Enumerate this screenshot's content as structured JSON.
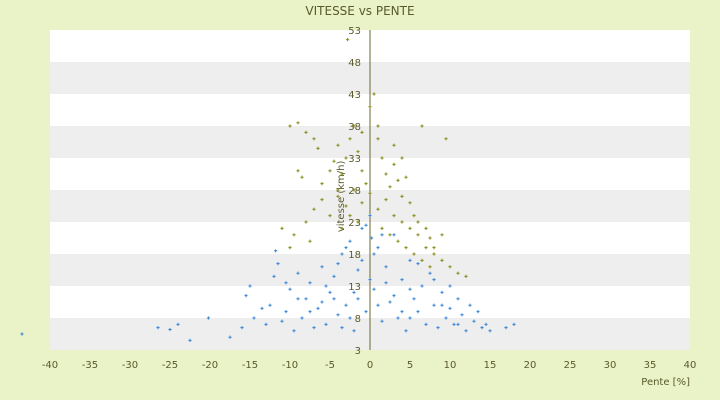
{
  "chart_data": {
    "type": "scatter",
    "title": "VITESSE vs PENTE",
    "xlabel": "Pente [%]",
    "ylabel": "vitesse (km/h)",
    "xlim": [
      -40,
      40
    ],
    "ylim": [
      3,
      53
    ],
    "x_ticks": [
      "-40",
      "-35",
      "-30",
      "-25",
      "-20",
      "-15",
      "-10",
      "-5",
      "0",
      "5",
      "10",
      "15",
      "20",
      "25",
      "30",
      "35",
      "40"
    ],
    "y_ticks": [
      "53",
      "48",
      "43",
      "38",
      "33",
      "28",
      "23",
      "18",
      "13",
      "8",
      "3"
    ],
    "grid": "horizontal bands",
    "legend": "none",
    "colors": {
      "background": "#eaf2c8",
      "plot_band_light": "#ffffff",
      "plot_band_dark": "#eeeeee",
      "series_blue": "#3a86d6",
      "series_olive": "#8a8a1a",
      "axis_line": "#6a6a2a",
      "text": "#5a5a2a"
    },
    "series": [
      {
        "color": "#3a86d6",
        "marker": "+",
        "points": [
          [
            -43.5,
            5.5
          ],
          [
            -26.5,
            6.5
          ],
          [
            -25,
            6.2
          ],
          [
            -24,
            7
          ],
          [
            -22.5,
            4.5
          ],
          [
            -20.2,
            8
          ],
          [
            -17.5,
            5
          ],
          [
            -16,
            6.5
          ],
          [
            -15.5,
            11.5
          ],
          [
            -15,
            13
          ],
          [
            -14.5,
            8
          ],
          [
            -13,
            7
          ],
          [
            -12.5,
            10
          ],
          [
            -12,
            14.5
          ],
          [
            -11.5,
            16.5
          ],
          [
            -11.8,
            18.5
          ],
          [
            -10.5,
            9
          ],
          [
            -10,
            12.5
          ],
          [
            -9.5,
            6
          ],
          [
            -9,
            15
          ],
          [
            -8.5,
            8
          ],
          [
            -8,
            11
          ],
          [
            -7.5,
            13.5
          ],
          [
            -7,
            6.5
          ],
          [
            -6.5,
            9.5
          ],
          [
            -6,
            16
          ],
          [
            -5.5,
            7
          ],
          [
            -5,
            12
          ],
          [
            -4.5,
            14.5
          ],
          [
            -4,
            8.5
          ],
          [
            -3.5,
            18
          ],
          [
            -3,
            10
          ],
          [
            -2.5,
            20
          ],
          [
            -2,
            6
          ],
          [
            -1.5,
            15.5
          ],
          [
            -1,
            22
          ],
          [
            -0.5,
            9
          ],
          [
            0,
            24
          ],
          [
            0.5,
            12.5
          ],
          [
            1,
            19
          ],
          [
            1.5,
            7.5
          ],
          [
            2,
            16
          ],
          [
            2.5,
            10.5
          ],
          [
            3,
            21
          ],
          [
            3.5,
            8
          ],
          [
            4,
            14
          ],
          [
            4.5,
            6
          ],
          [
            5,
            17
          ],
          [
            5.5,
            11
          ],
          [
            6,
            9
          ],
          [
            6.5,
            13
          ],
          [
            7,
            7
          ],
          [
            7.5,
            15
          ],
          [
            8,
            10
          ],
          [
            8.5,
            6.5
          ],
          [
            9,
            12
          ],
          [
            9.5,
            8
          ],
          [
            10,
            9.5
          ],
          [
            10.5,
            7
          ],
          [
            11,
            11
          ],
          [
            11.5,
            8.5
          ],
          [
            12,
            6
          ],
          [
            12.5,
            10
          ],
          [
            13,
            7.5
          ],
          [
            13.5,
            9
          ],
          [
            14,
            6.5
          ],
          [
            14.5,
            7
          ],
          [
            15,
            6
          ],
          [
            17,
            6.5
          ],
          [
            18,
            7
          ],
          [
            -6,
            10.5
          ],
          [
            -5.5,
            13
          ],
          [
            -4,
            16.5
          ],
          [
            -3,
            19
          ],
          [
            -2,
            12
          ],
          [
            -1,
            17
          ],
          [
            0,
            14
          ],
          [
            1,
            10
          ],
          [
            2,
            13.5
          ],
          [
            3,
            11.5
          ],
          [
            4,
            9
          ],
          [
            5,
            8
          ],
          [
            -2.5,
            8
          ],
          [
            -1.5,
            11
          ],
          [
            0.5,
            18
          ],
          [
            1.5,
            21
          ],
          [
            -0.5,
            22.5
          ],
          [
            0.2,
            20.5
          ],
          [
            -7.5,
            9
          ],
          [
            -9,
            11
          ],
          [
            -10.5,
            13.5
          ],
          [
            -11,
            7.5
          ],
          [
            -13.5,
            9.5
          ],
          [
            8,
            14
          ],
          [
            9,
            10
          ],
          [
            10,
            13
          ],
          [
            11,
            7
          ],
          [
            6,
            16.5
          ],
          [
            5,
            12.5
          ],
          [
            -4.5,
            11
          ],
          [
            -3.5,
            6.5
          ]
        ]
      },
      {
        "color": "#8a8a1a",
        "marker": "+",
        "points": [
          [
            -10,
            38
          ],
          [
            -9,
            38.5
          ],
          [
            -8,
            37
          ],
          [
            -7,
            36
          ],
          [
            -6.5,
            34.5
          ],
          [
            -9,
            31
          ],
          [
            -8.5,
            30
          ],
          [
            -6,
            29
          ],
          [
            -5,
            31
          ],
          [
            -4.5,
            32.5
          ],
          [
            -4,
            28
          ],
          [
            -3.5,
            30.5
          ],
          [
            -3,
            33
          ],
          [
            -2.5,
            36
          ],
          [
            -2,
            38
          ],
          [
            -1.5,
            34
          ],
          [
            -1,
            31
          ],
          [
            -0.5,
            29
          ],
          [
            0,
            41
          ],
          [
            0.5,
            43
          ],
          [
            1,
            36
          ],
          [
            1.5,
            33
          ],
          [
            2,
            30.5
          ],
          [
            2.5,
            28.5
          ],
          [
            3,
            32
          ],
          [
            3.5,
            29.5
          ],
          [
            4,
            27
          ],
          [
            4.5,
            30
          ],
          [
            5,
            26
          ],
          [
            5.5,
            24
          ],
          [
            6,
            23
          ],
          [
            6.5,
            38
          ],
          [
            7,
            22
          ],
          [
            7.5,
            20.5
          ],
          [
            8,
            19
          ],
          [
            9,
            21
          ],
          [
            9.5,
            36
          ],
          [
            -2.8,
            51.5
          ],
          [
            -7,
            25
          ],
          [
            -6,
            26.5
          ],
          [
            -5,
            24
          ],
          [
            -4,
            27
          ],
          [
            -3,
            25.5
          ],
          [
            -2,
            28
          ],
          [
            -1,
            26
          ],
          [
            0,
            27.5
          ],
          [
            1,
            25
          ],
          [
            2,
            26.5
          ],
          [
            3,
            24
          ],
          [
            4,
            23
          ],
          [
            5,
            22
          ],
          [
            6,
            21
          ],
          [
            7,
            19
          ],
          [
            8,
            18
          ],
          [
            9,
            17
          ],
          [
            10,
            16
          ],
          [
            11,
            15
          ],
          [
            12,
            14.5
          ],
          [
            -8,
            23
          ],
          [
            -9.5,
            21
          ],
          [
            -10,
            19
          ],
          [
            -11,
            22
          ],
          [
            -7.5,
            20
          ],
          [
            -3.5,
            22
          ],
          [
            -2.5,
            24
          ],
          [
            -1.5,
            23
          ],
          [
            1.5,
            22
          ],
          [
            2.5,
            21
          ],
          [
            3.5,
            20
          ],
          [
            4.5,
            19
          ],
          [
            5.5,
            18
          ],
          [
            6.5,
            17
          ],
          [
            7.5,
            16
          ],
          [
            3,
            35
          ],
          [
            4,
            33
          ],
          [
            1,
            38
          ],
          [
            -1,
            37
          ],
          [
            -4,
            35
          ]
        ]
      }
    ]
  }
}
